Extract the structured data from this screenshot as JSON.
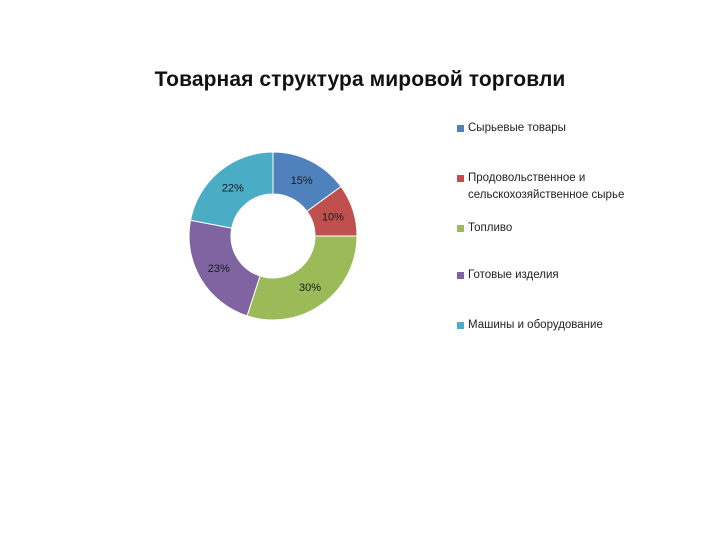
{
  "chart_data": {
    "type": "pie",
    "title": "Товарная структура мировой торговли",
    "categories": [
      "Сырьевые товары",
      "Продовольственное и сельскохозяйственное сырье",
      "Топливо",
      "Готовые изделия",
      "Машины и оборудование"
    ],
    "values": [
      15,
      10,
      30,
      23,
      22
    ],
    "labels": [
      "15%",
      "10%",
      "30%",
      "23%",
      "22%"
    ],
    "colors": [
      "#4F81BD",
      "#C0504D",
      "#9BBB59",
      "#8064A2",
      "#4BACC6"
    ],
    "legend_position": "right"
  }
}
